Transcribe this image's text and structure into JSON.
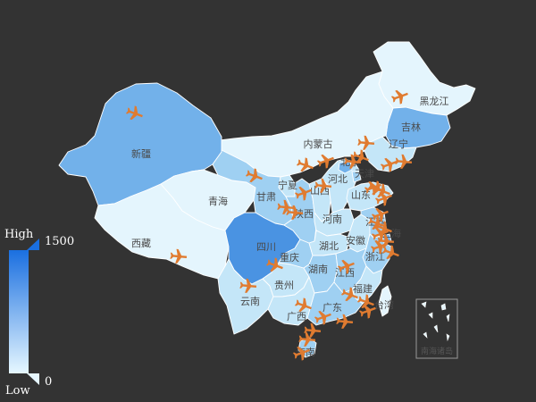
{
  "legend": {
    "high_label": "High",
    "low_label": "Low",
    "max_value": "1500",
    "min_value": "0",
    "color_high": "#1a6fe0",
    "color_low": "#e6f7ff"
  },
  "map": {
    "fill_levels": {
      "1": "#e4f5fd",
      "2": "#c4e6f8",
      "3": "#9fd0f2",
      "4": "#72b1ea",
      "5": "#4a93e2"
    },
    "provinces": [
      {
        "id": "heilongjiang",
        "name": "黑龙江",
        "level": 1
      },
      {
        "id": "jilin",
        "name": "吉林",
        "level": 4
      },
      {
        "id": "liaoning",
        "name": "辽宁",
        "level": 2
      },
      {
        "id": "neimenggu",
        "name": "内蒙古",
        "level": 1
      },
      {
        "id": "xinjiang",
        "name": "新疆",
        "level": 4
      },
      {
        "id": "xizang",
        "name": "西藏",
        "level": 1
      },
      {
        "id": "qinghai",
        "name": "青海",
        "level": 1
      },
      {
        "id": "gansu",
        "name": "甘肃",
        "level": 3
      },
      {
        "id": "ningxia",
        "name": "宁夏",
        "level": 2
      },
      {
        "id": "sichuan",
        "name": "四川",
        "level": 5
      },
      {
        "id": "yunnan",
        "name": "云南",
        "level": 2
      },
      {
        "id": "guizhou",
        "name": "贵州",
        "level": 2
      },
      {
        "id": "chongqing",
        "name": "重庆",
        "level": 3
      },
      {
        "id": "shaanxi",
        "name": "陕西",
        "level": 3
      },
      {
        "id": "shanxi",
        "name": "山西",
        "level": 2
      },
      {
        "id": "hebei",
        "name": "河北",
        "level": 2
      },
      {
        "id": "beijing",
        "name": "北京",
        "level": 4
      },
      {
        "id": "tianjin",
        "name": "天津",
        "level": 3
      },
      {
        "id": "shandong",
        "name": "山东",
        "level": 2
      },
      {
        "id": "henan",
        "name": "河南",
        "level": 2
      },
      {
        "id": "hubei",
        "name": "湖北",
        "level": 2
      },
      {
        "id": "hunan",
        "name": "湖南",
        "level": 3
      },
      {
        "id": "anhui",
        "name": "安徽",
        "level": 2
      },
      {
        "id": "jiangsu",
        "name": "江苏",
        "level": 3
      },
      {
        "id": "shanghai",
        "name": "上海",
        "level": 4
      },
      {
        "id": "zhejiang",
        "name": "浙江",
        "level": 3
      },
      {
        "id": "jiangxi",
        "name": "江西",
        "level": 3
      },
      {
        "id": "fujian",
        "name": "福建",
        "level": 2
      },
      {
        "id": "guangdong",
        "name": "广东",
        "level": 3
      },
      {
        "id": "guangxi",
        "name": "广西",
        "level": 2
      },
      {
        "id": "hainan",
        "name": "海南",
        "level": 3
      },
      {
        "id": "taiwan",
        "name": "台湾",
        "level": 1
      }
    ],
    "inset_label": "南海诸岛",
    "plane_color": "#e07b30",
    "plane_icon": "airplane-icon",
    "plane_count": 38
  }
}
